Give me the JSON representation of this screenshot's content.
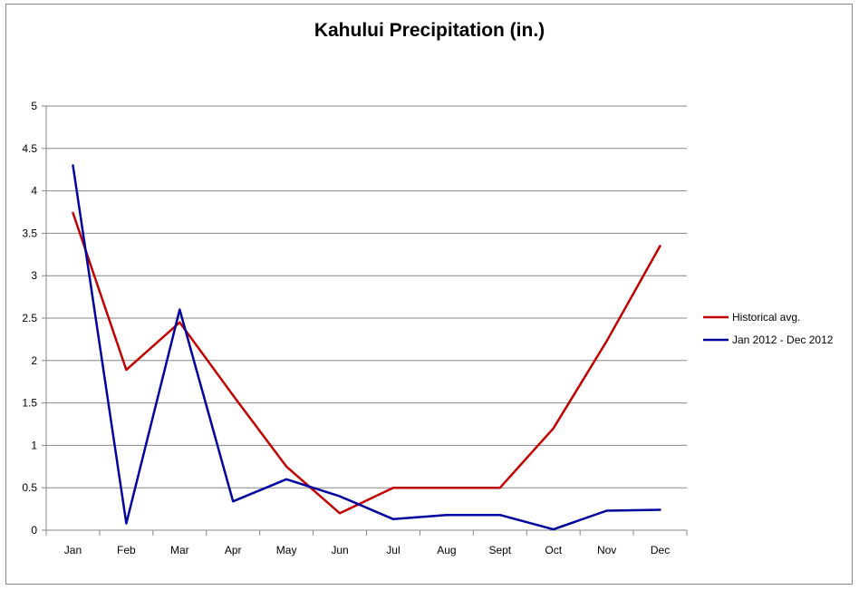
{
  "chart_data": {
    "type": "line",
    "title": "Kahului Precipitation (in.)",
    "xlabel": "",
    "ylabel": "",
    "categories": [
      "Jan",
      "Feb",
      "Mar",
      "Apr",
      "May",
      "Jun",
      "Jul",
      "Aug",
      "Sept",
      "Oct",
      "Nov",
      "Dec"
    ],
    "ylim": [
      0,
      5
    ],
    "yticks": [
      "0",
      "0.5",
      "1",
      "1.5",
      "2",
      "2.5",
      "3",
      "3.5",
      "4",
      "4.5",
      "5"
    ],
    "grid": true,
    "legend_position": "right",
    "series": [
      {
        "name": "Historical avg.",
        "color": "#C00000",
        "values": [
          3.74,
          1.89,
          2.45,
          1.59,
          0.75,
          0.2,
          0.5,
          0.5,
          0.5,
          1.2,
          2.23,
          3.35
        ]
      },
      {
        "name": "Jan 2012 - Dec 2012",
        "color": "#0000A0",
        "values": [
          4.3,
          0.08,
          2.6,
          0.34,
          0.6,
          0.4,
          0.13,
          0.18,
          0.18,
          0.01,
          0.23,
          0.24
        ]
      }
    ]
  }
}
